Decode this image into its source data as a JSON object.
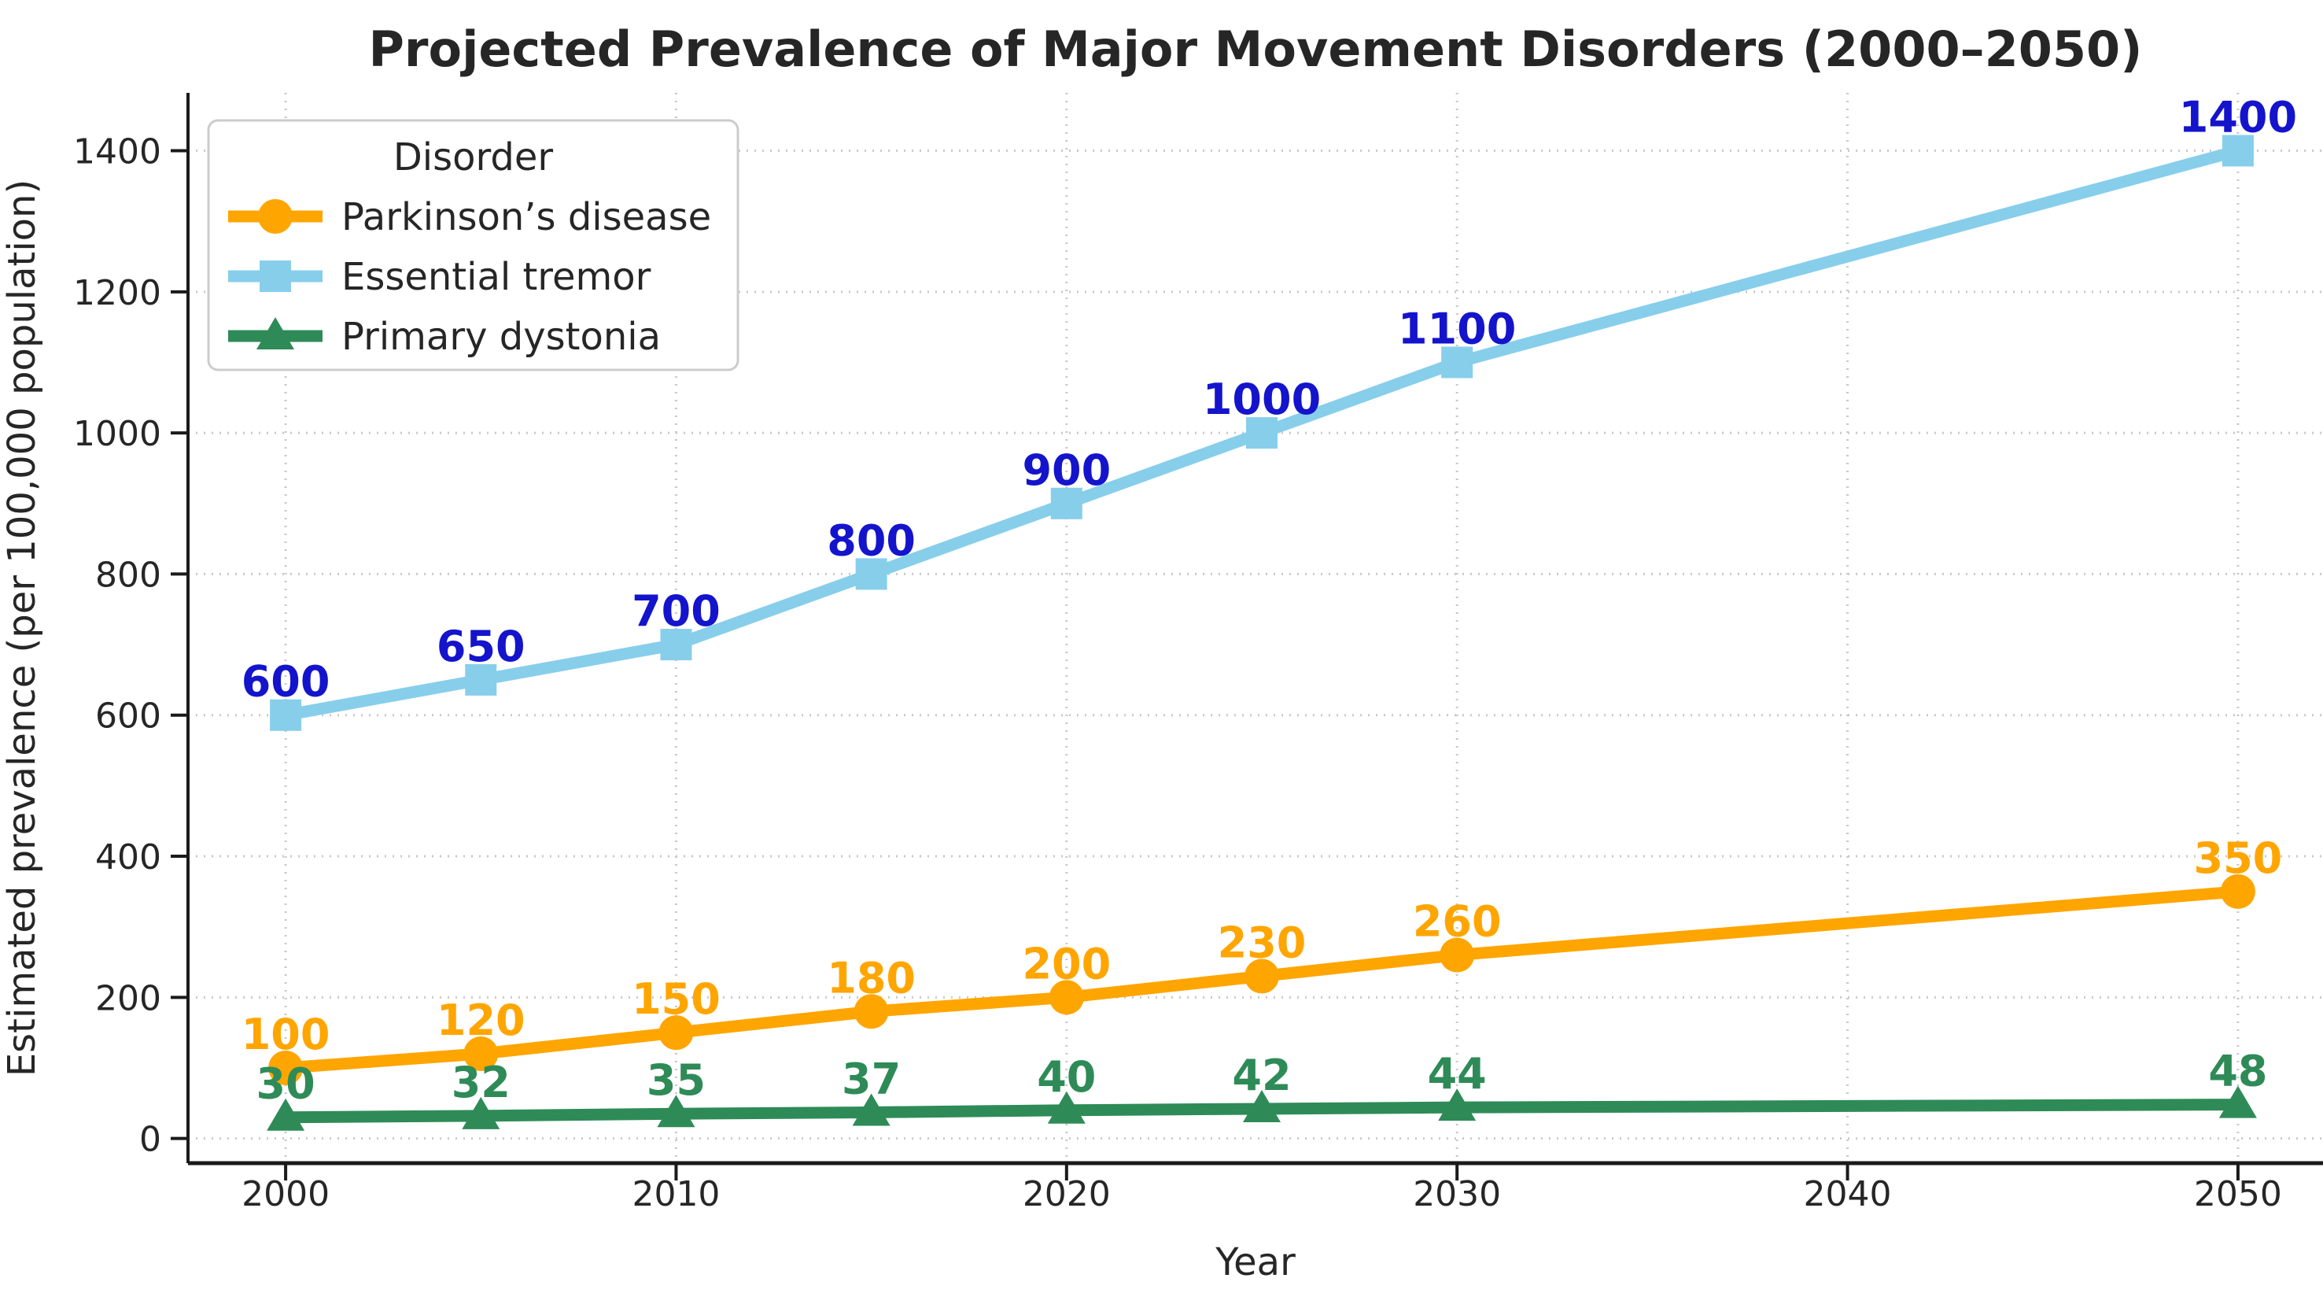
{
  "figure": {
    "background": "#ffffff"
  },
  "colors": {
    "title_text": "#262626",
    "tick_text": "#262626",
    "grid": "#c9c9c9",
    "spine": "#1a1a1a",
    "legend_border": "#cccccc",
    "legend_background": "#ffffff",
    "parkinsons_orange": "#FFA500",
    "tremor_skyblue": "#87CEEB",
    "tremor_label_blue": "#1414CC",
    "dystonia_green": "#2E8B57"
  },
  "chart_data": {
    "type": "line",
    "title": "Projected Prevalence of Major Movement Disorders (2000–2050)",
    "xlabel": "Year",
    "ylabel": "Estimated prevalence (per 100,000 population)",
    "x": [
      2000,
      2005,
      2010,
      2015,
      2020,
      2025,
      2030,
      2050
    ],
    "x_ticks": [
      "2000",
      "2010",
      "2020",
      "2030",
      "2040",
      "2050"
    ],
    "x_tick_values": [
      2000,
      2010,
      2020,
      2030,
      2040,
      2050
    ],
    "y_ticks": [
      "0",
      "200",
      "400",
      "600",
      "800",
      "1000",
      "1200",
      "1400"
    ],
    "y_tick_values": [
      0,
      200,
      400,
      600,
      800,
      1000,
      1200,
      1400
    ],
    "xlim": [
      1997.5,
      2052.5
    ],
    "ylim": [
      -35,
      1482
    ],
    "grid": true,
    "legend": {
      "title": "Disorder",
      "position": "upper-left"
    },
    "series": [
      {
        "name": "Parkinson’s disease",
        "marker": "circle",
        "color": "#FFA500",
        "label_color": "#FFA500",
        "values": [
          100,
          120,
          150,
          180,
          200,
          230,
          260,
          350
        ],
        "labels": [
          "100",
          "120",
          "150",
          "180",
          "200",
          "230",
          "260",
          "350"
        ]
      },
      {
        "name": "Essential tremor",
        "marker": "square",
        "color": "#87CEEB",
        "label_color": "#1414CC",
        "values": [
          600,
          650,
          700,
          800,
          900,
          1000,
          1100,
          1400
        ],
        "labels": [
          "600",
          "650",
          "700",
          "800",
          "900",
          "1000",
          "1100",
          "1400"
        ]
      },
      {
        "name": "Primary dystonia",
        "marker": "triangle",
        "color": "#2E8B57",
        "label_color": "#2E8B57",
        "values": [
          30,
          32,
          35,
          37,
          40,
          42,
          44,
          48
        ],
        "labels": [
          "30",
          "32",
          "35",
          "37",
          "40",
          "42",
          "44",
          "48"
        ]
      }
    ]
  }
}
